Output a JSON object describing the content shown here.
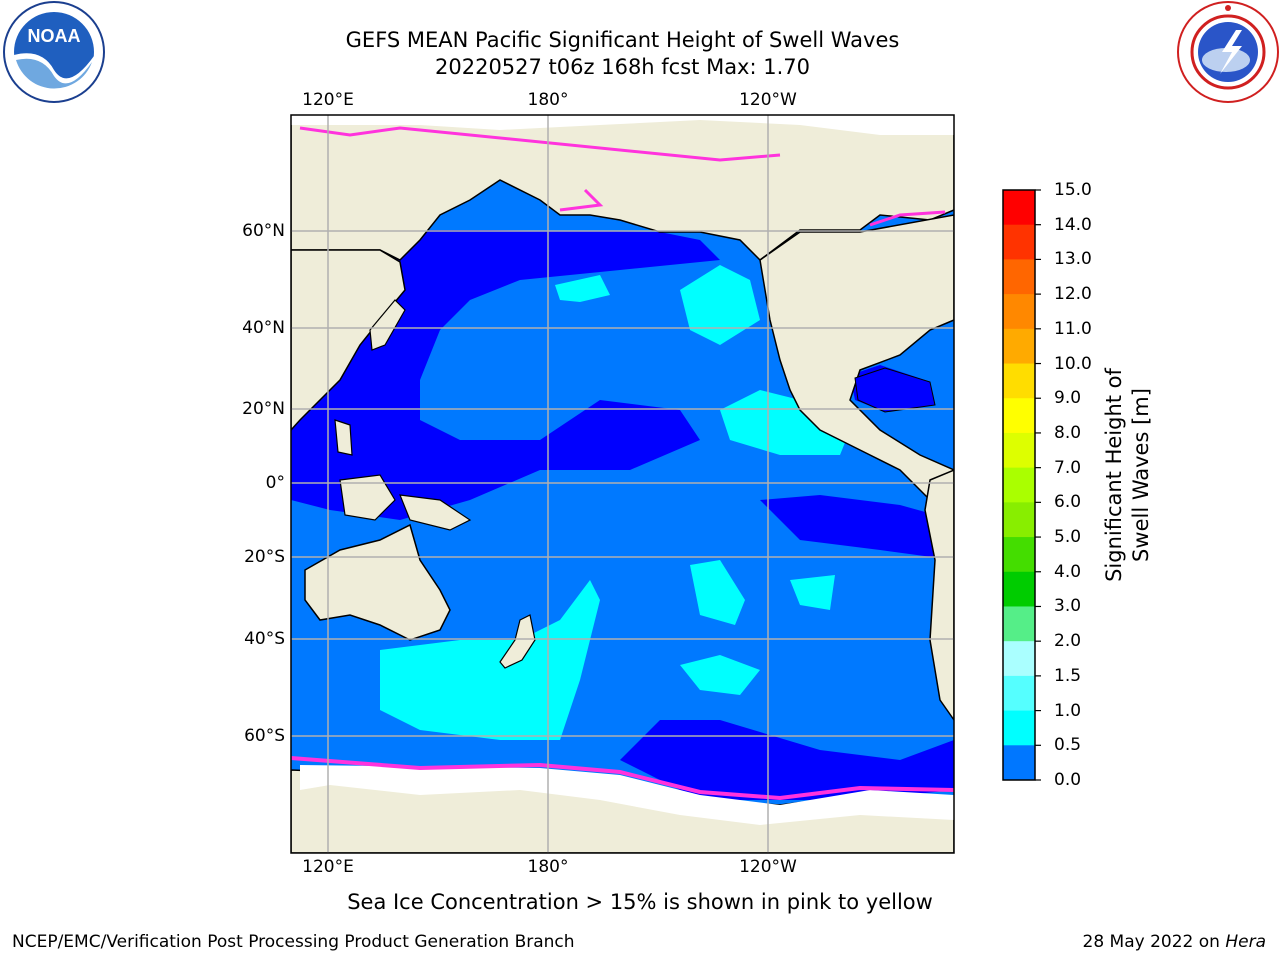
{
  "title": {
    "line1": "GEFS MEAN Pacific Significant Height of Swell Waves",
    "line2": "20220527 t06z 168h fcst   Max: 1.70"
  },
  "logos": {
    "left": "noaa-logo",
    "right": "nws-logo"
  },
  "map": {
    "lon_ticks_top": [
      "120°E",
      "180°",
      "120°W"
    ],
    "lon_ticks_bottom": [
      "120°E",
      "180°",
      "120°W"
    ],
    "lat_ticks": [
      "60°N",
      "40°N",
      "20°N",
      "0°",
      "20°S",
      "40°S",
      "60°S"
    ],
    "colors": {
      "land": "#efedd9",
      "ocean_dark": "#0000ff",
      "ocean_mid": "#0079ff",
      "ocean_light": "#00ffff",
      "ice": "#ff33dd"
    }
  },
  "colorbar": {
    "title": "Significant Height of Swell Waves [m]",
    "labels": [
      "15.0",
      "14.0",
      "13.0",
      "12.0",
      "11.0",
      "10.0",
      "9.0",
      "8.0",
      "7.0",
      "6.0",
      "5.0",
      "4.0",
      "3.0",
      "2.0",
      "1.5",
      "1.0",
      "0.5",
      "0.0"
    ],
    "colors": [
      "#ff0000",
      "#ff3300",
      "#ff6600",
      "#ff8800",
      "#ffaa00",
      "#ffdd00",
      "#ffff00",
      "#ddff00",
      "#aaff00",
      "#88ee00",
      "#44dd00",
      "#00cc00",
      "#55ee88",
      "#aaffff",
      "#55ffff",
      "#00ffff",
      "#0077ff",
      "#0000ff"
    ]
  },
  "note": "Sea Ice Concentration > 15% is shown in pink to yellow",
  "footer": {
    "left": "NCEP/EMC/Verification Post Processing Product Generation Branch",
    "right_date": "28 May 2022 on",
    "right_host": "Hera"
  }
}
